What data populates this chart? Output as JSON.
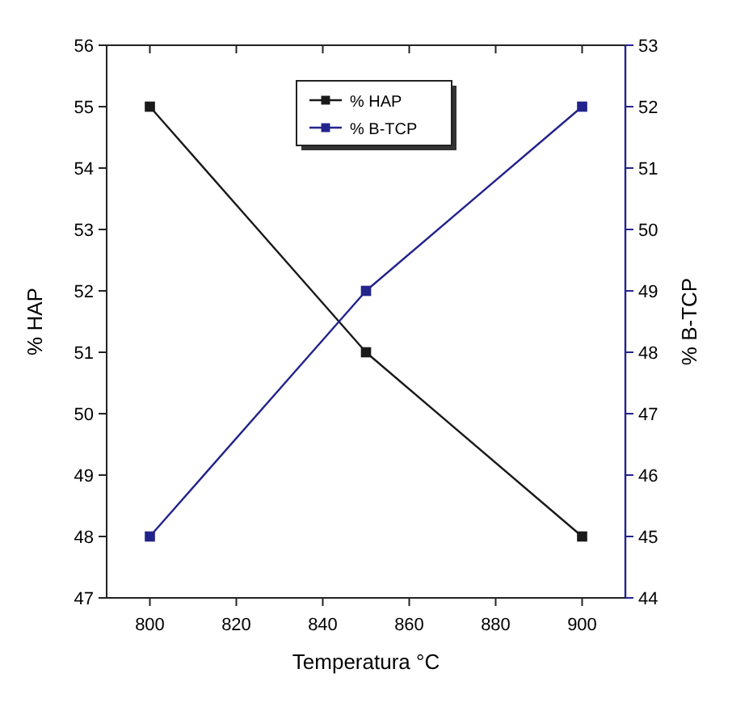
{
  "chart_data": {
    "type": "line",
    "xlabel": "Temperatura °C",
    "ylabel": "% HAP",
    "y2label": "% B-TCP",
    "x": [
      800,
      850,
      900
    ],
    "series": [
      {
        "name": "% HAP",
        "color": "#1a1a1a",
        "values": [
          55,
          51,
          48
        ]
      },
      {
        "name": "% B-TCP",
        "color": "#23238c",
        "values": [
          45,
          49,
          52
        ],
        "axis": "y2"
      }
    ],
    "xlim": [
      790,
      910
    ],
    "xticks": [
      800,
      820,
      840,
      860,
      880,
      900
    ],
    "ylim": [
      47,
      56
    ],
    "yticks": [
      47,
      48,
      49,
      50,
      51,
      52,
      53,
      54,
      55,
      56
    ],
    "y2lim": [
      44,
      53
    ],
    "y2ticks": [
      44,
      45,
      46,
      47,
      48,
      49,
      50,
      51,
      52,
      53
    ],
    "marker": "square",
    "legend": "top",
    "grid": false
  }
}
